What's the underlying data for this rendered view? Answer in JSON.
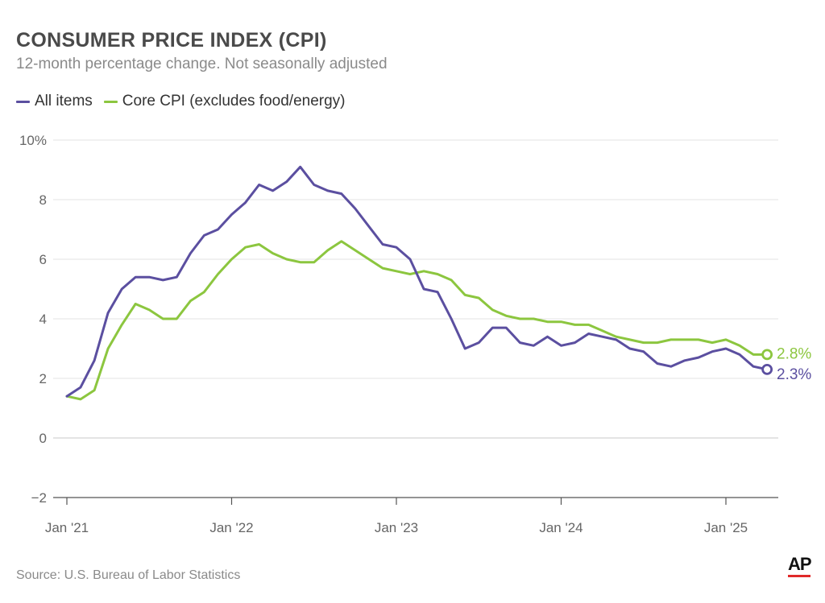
{
  "title": "CONSUMER PRICE INDEX (CPI)",
  "subtitle": "12-month percentage change. Not seasonally adjusted",
  "source": "Source: U.S. Bureau of Labor Statistics",
  "logo_text": "AP",
  "colors": {
    "all_items": "#5b4fa0",
    "core": "#8cc63f",
    "grid": "#e3e3e3",
    "axis": "#555555",
    "tick_text": "#666666",
    "logo_bar": "#e02a2a"
  },
  "chart_data": {
    "type": "line",
    "title": "CONSUMER PRICE INDEX (CPI)",
    "subtitle": "12-month percentage change. Not seasonally adjusted",
    "x_start": "2021-01",
    "x_ticks": [
      "Jan '21",
      "Jan '22",
      "Jan '23",
      "Jan '24",
      "Jan '25"
    ],
    "y_ticks": [
      "10%",
      "8",
      "6",
      "4",
      "2",
      "0",
      "−2"
    ],
    "ylim": [
      -2,
      10
    ],
    "grid": true,
    "legend_position": "top-left",
    "series": [
      {
        "name": "All items",
        "end_label": "2.3%",
        "values": [
          1.4,
          1.7,
          2.6,
          4.2,
          5.0,
          5.4,
          5.4,
          5.3,
          5.4,
          6.2,
          6.8,
          7.0,
          7.5,
          7.9,
          8.5,
          8.3,
          8.6,
          9.1,
          8.5,
          8.3,
          8.2,
          7.7,
          7.1,
          6.5,
          6.4,
          6.0,
          5.0,
          4.9,
          4.0,
          3.0,
          3.2,
          3.7,
          3.7,
          3.2,
          3.1,
          3.4,
          3.1,
          3.2,
          3.5,
          3.4,
          3.3,
          3.0,
          2.9,
          2.5,
          2.4,
          2.6,
          2.7,
          2.9,
          3.0,
          2.8,
          2.4,
          2.3
        ]
      },
      {
        "name": "Core CPI (excludes food/energy)",
        "end_label": "2.8%",
        "values": [
          1.4,
          1.3,
          1.6,
          3.0,
          3.8,
          4.5,
          4.3,
          4.0,
          4.0,
          4.6,
          4.9,
          5.5,
          6.0,
          6.4,
          6.5,
          6.2,
          6.0,
          5.9,
          5.9,
          6.3,
          6.6,
          6.3,
          6.0,
          5.7,
          5.6,
          5.5,
          5.6,
          5.5,
          5.3,
          4.8,
          4.7,
          4.3,
          4.1,
          4.0,
          4.0,
          3.9,
          3.9,
          3.8,
          3.8,
          3.6,
          3.4,
          3.3,
          3.2,
          3.2,
          3.3,
          3.3,
          3.3,
          3.2,
          3.3,
          3.1,
          2.8,
          2.8
        ]
      }
    ]
  }
}
